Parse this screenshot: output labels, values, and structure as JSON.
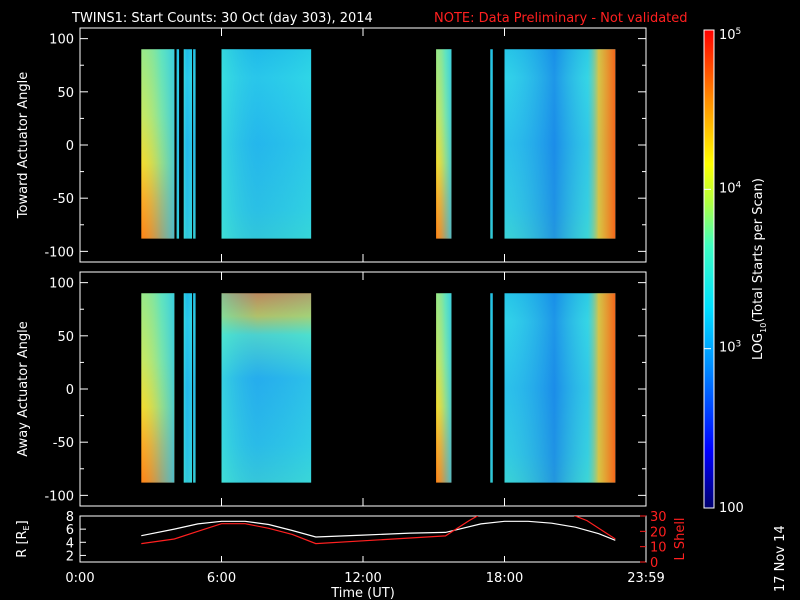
{
  "header": {
    "title": "TWINS1: Start Counts: 30 Oct (day 303), 2014",
    "note": "NOTE: Data Preliminary - Not validated"
  },
  "footer": {
    "stamp": "17 Nov 14"
  },
  "colorbar": {
    "label": "LOG10(Total Starts per Scan)",
    "label_prefix": "LOG",
    "label_sub": "10",
    "label_suffix": "(Total Starts per Scan)",
    "ticks": [
      {
        "value": 100,
        "text": "100"
      },
      {
        "value": 1000,
        "text": "10",
        "exp": "3"
      },
      {
        "value": 10000,
        "text": "10",
        "exp": "4"
      },
      {
        "value": 100000,
        "text": "10",
        "exp": "5"
      }
    ],
    "range": [
      100,
      100000
    ],
    "scale": "log"
  },
  "colors": {
    "background": "#000000",
    "axes": "#ffffff",
    "note": "#ff2020",
    "r_line": "#ffffff",
    "lshell_line": "#ff2020"
  },
  "chart_data": [
    {
      "type": "heatmap",
      "ylabel": "Toward Actuator Angle",
      "ylim": [
        -110,
        110
      ],
      "yticks": [
        100,
        50,
        0,
        -50,
        -100
      ],
      "xlim": [
        0,
        24
      ],
      "data_angle_range": [
        -88,
        90
      ],
      "intervals": [
        {
          "start": 2.6,
          "end": 4.0,
          "profile": "warm_edge"
        },
        {
          "start": 4.1,
          "end": 4.2,
          "profile": "cool"
        },
        {
          "start": 4.4,
          "end": 4.75,
          "profile": "cool"
        },
        {
          "start": 4.8,
          "end": 4.9,
          "profile": "cool"
        },
        {
          "start": 6.0,
          "end": 9.8,
          "profile": "cool"
        },
        {
          "start": 15.1,
          "end": 15.75,
          "profile": "warm_edge"
        },
        {
          "start": 17.4,
          "end": 17.5,
          "profile": "cool"
        },
        {
          "start": 18.0,
          "end": 22.7,
          "profile": "cool_to_hot"
        }
      ]
    },
    {
      "type": "heatmap",
      "ylabel": "Away Actuator Angle",
      "ylim": [
        -110,
        110
      ],
      "yticks": [
        100,
        50,
        0,
        -50,
        -100
      ],
      "xlim": [
        0,
        24
      ],
      "data_angle_range": [
        -88,
        90
      ],
      "intervals": [
        {
          "start": 2.6,
          "end": 4.0,
          "profile": "warm_edge"
        },
        {
          "start": 4.4,
          "end": 4.75,
          "profile": "cool"
        },
        {
          "start": 4.8,
          "end": 4.9,
          "profile": "cool"
        },
        {
          "start": 6.0,
          "end": 9.8,
          "profile": "cool_top_hot"
        },
        {
          "start": 15.1,
          "end": 15.75,
          "profile": "warm_edge"
        },
        {
          "start": 17.4,
          "end": 17.5,
          "profile": "cool"
        },
        {
          "start": 18.0,
          "end": 22.7,
          "profile": "cool_to_hot"
        }
      ]
    },
    {
      "type": "line",
      "xlabel": "Time (UT)",
      "xlim": [
        0,
        24
      ],
      "xticks": [
        {
          "value": 0,
          "text": "0:00"
        },
        {
          "value": 6,
          "text": "6:00"
        },
        {
          "value": 12,
          "text": "12:00"
        },
        {
          "value": 18,
          "text": "18:00"
        },
        {
          "value": 24,
          "text": "23:59"
        }
      ],
      "left_axis": {
        "label": "R [RE]",
        "label_prefix": "R [R",
        "label_sub": "E",
        "label_suffix": "]",
        "ylim": [
          1,
          8
        ],
        "ticks": [
          2,
          4,
          6,
          8
        ]
      },
      "right_axis": {
        "label": "L Shell",
        "ylim": [
          0,
          30
        ],
        "ticks": [
          0,
          10,
          20,
          30
        ]
      },
      "series": [
        {
          "axis": "left",
          "x": [
            2.6,
            4.0,
            5.0,
            6.0,
            7.0,
            8.0,
            9.0,
            10.0,
            12.0,
            14.0,
            15.5,
            17.0,
            18.0,
            19.0,
            20.0,
            21.0,
            22.0,
            22.7
          ],
          "y": [
            5.0,
            6.0,
            6.8,
            7.2,
            7.2,
            6.7,
            5.8,
            4.8,
            5.1,
            5.4,
            5.5,
            6.8,
            7.2,
            7.2,
            6.9,
            6.3,
            5.3,
            4.3
          ]
        },
        {
          "axis": "right",
          "x": [
            2.6,
            4.0,
            5.0,
            6.0,
            7.0,
            8.0,
            9.0,
            10.0,
            15.5,
            16.5,
            17.2,
            20.5,
            21.5,
            22.7
          ],
          "y": [
            12,
            15,
            20,
            25,
            25,
            22,
            18,
            12,
            17,
            27,
            33,
            33,
            27,
            15
          ]
        }
      ]
    }
  ]
}
